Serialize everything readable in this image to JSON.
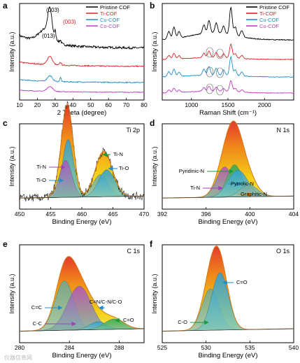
{
  "watermark": "仪器信息网",
  "chart_data": [
    {
      "id": "a",
      "panel_label": "a",
      "type": "line",
      "xlabel": "2 Theta (degree)",
      "ylabel": "Intensity (a.u.)",
      "xlim": [
        10,
        80
      ],
      "xticks": [
        10,
        20,
        30,
        40,
        50,
        60,
        70,
        80
      ],
      "legend_position": "top-right",
      "series": [
        {
          "name": "Pristine COF",
          "color": "#000000",
          "offset": 3.0
        },
        {
          "name": "Ti-COF",
          "color": "#d62728",
          "offset": 2.0
        },
        {
          "name": "Cu-COF",
          "color": "#1f8fc9",
          "offset": 1.0
        },
        {
          "name": "Co-COF",
          "color": "#c03fc0",
          "offset": 0.0
        }
      ],
      "annotations": [
        {
          "text": "(003)",
          "x": 27,
          "color": "#000000"
        },
        {
          "text": "(013)",
          "x": 30,
          "color": "#000000"
        },
        {
          "text": "(003)",
          "x": 33,
          "color": "#d62728"
        }
      ]
    },
    {
      "id": "b",
      "panel_label": "b",
      "type": "line",
      "xlabel": "Raman Shift (cm⁻¹)",
      "ylabel": "Intensity (a.u.)",
      "xlim": [
        600,
        2400
      ],
      "xticks": [
        1000,
        1500,
        2000
      ],
      "legend_position": "top-right",
      "series": [
        {
          "name": "Pristine COF",
          "color": "#000000",
          "offset": 3.0
        },
        {
          "name": "Ti-COF",
          "color": "#d62728",
          "offset": 2.0
        },
        {
          "name": "Cu-COF",
          "color": "#1f8fc9",
          "offset": 1.0
        },
        {
          "name": "Co-COF",
          "color": "#c03fc0",
          "offset": 0.0
        }
      ]
    },
    {
      "id": "c",
      "panel_label": "c",
      "title": "Ti 2p",
      "type": "area",
      "xlabel": "Binding Energy (eV)",
      "ylabel": "Intensity (a.u.)",
      "xlim": [
        450,
        470
      ],
      "xticks": [
        450,
        455,
        460,
        465,
        470
      ],
      "reversed_x": false,
      "peaks": [
        {
          "name": "Ti-N",
          "center": 457.8,
          "height": 0.86,
          "width": 0.9
        },
        {
          "name": "Ti-O",
          "center": 457.4,
          "height": 0.55,
          "width": 1.0
        },
        {
          "name": "Ti-N",
          "center": 463.0,
          "height": 0.33,
          "width": 1.2
        },
        {
          "name": "Ti-O",
          "center": 464.0,
          "height": 0.4,
          "width": 1.3
        }
      ],
      "labels": [
        {
          "text": "Ti-N",
          "arrow_to": 457.5
        },
        {
          "text": "Ti-O",
          "arrow_to": 457.2
        },
        {
          "text": "Ti-N",
          "arrow_to": 463.2
        },
        {
          "text": "Ti-O",
          "arrow_to": 464.1
        }
      ]
    },
    {
      "id": "d",
      "panel_label": "d",
      "title": "N 1s",
      "type": "area",
      "xlabel": "Binding Energy (eV)",
      "ylabel": "Intensity (a.u.)",
      "xlim": [
        392,
        404
      ],
      "xticks": [
        392,
        396,
        400,
        404
      ],
      "peaks": [
        {
          "name": "Ti-N",
          "center": 397.7,
          "height": 0.45,
          "width": 0.75
        },
        {
          "name": "Pyridinic-N",
          "center": 398.6,
          "height": 0.48,
          "width": 0.7
        },
        {
          "name": "Pyrrolic-N",
          "center": 398.9,
          "height": 0.4,
          "width": 0.9
        },
        {
          "name": "Graphitic-N",
          "center": 399.9,
          "height": 0.18,
          "width": 0.8
        }
      ],
      "labels": [
        {
          "text": "Pyridinic-N",
          "arrow_to": 398.6
        },
        {
          "text": "Pyrrolic-N",
          "arrow_to": 399.0
        },
        {
          "text": "Ti-N",
          "arrow_to": 397.6
        },
        {
          "text": "Graphitic-N",
          "arrow_to": 400.0
        }
      ]
    },
    {
      "id": "e",
      "panel_label": "e",
      "title": "C 1s",
      "type": "area",
      "xlabel": "Binding Energy (eV)",
      "ylabel": "Intensity (a.u.)",
      "xlim": [
        280,
        290
      ],
      "xticks": [
        280,
        284,
        288
      ],
      "peaks": [
        {
          "name": "C=C",
          "center": 283.6,
          "height": 0.62,
          "width": 0.75
        },
        {
          "name": "C-C",
          "center": 284.8,
          "height": 0.55,
          "width": 0.95
        },
        {
          "name": "C=N/C-N/C-O",
          "center": 286.3,
          "height": 0.1,
          "width": 0.7
        },
        {
          "name": "C=O",
          "center": 287.6,
          "height": 0.13,
          "width": 0.8
        }
      ],
      "labels": [
        {
          "text": "C=C",
          "arrow_to": 283.5
        },
        {
          "text": "C-C",
          "arrow_to": 284.6
        },
        {
          "text": "C=N/C-N/C-O",
          "arrow_to": 286.3
        },
        {
          "text": "C=O",
          "arrow_to": 287.6
        }
      ]
    },
    {
      "id": "f",
      "panel_label": "f",
      "title": "O 1s",
      "type": "area",
      "xlabel": "Binding Energy (eV)",
      "ylabel": "Intensity (a.u.)",
      "xlim": [
        525,
        540
      ],
      "xticks": [
        525,
        530,
        535,
        540
      ],
      "peaks": [
        {
          "name": "C-O",
          "center": 530.5,
          "height": 0.52,
          "width": 0.95
        },
        {
          "name": "C=O",
          "center": 531.6,
          "height": 0.72,
          "width": 0.95
        }
      ],
      "labels": [
        {
          "text": "C=O",
          "arrow_to": 531.8
        },
        {
          "text": "C-O",
          "arrow_to": 530.4
        }
      ]
    }
  ]
}
